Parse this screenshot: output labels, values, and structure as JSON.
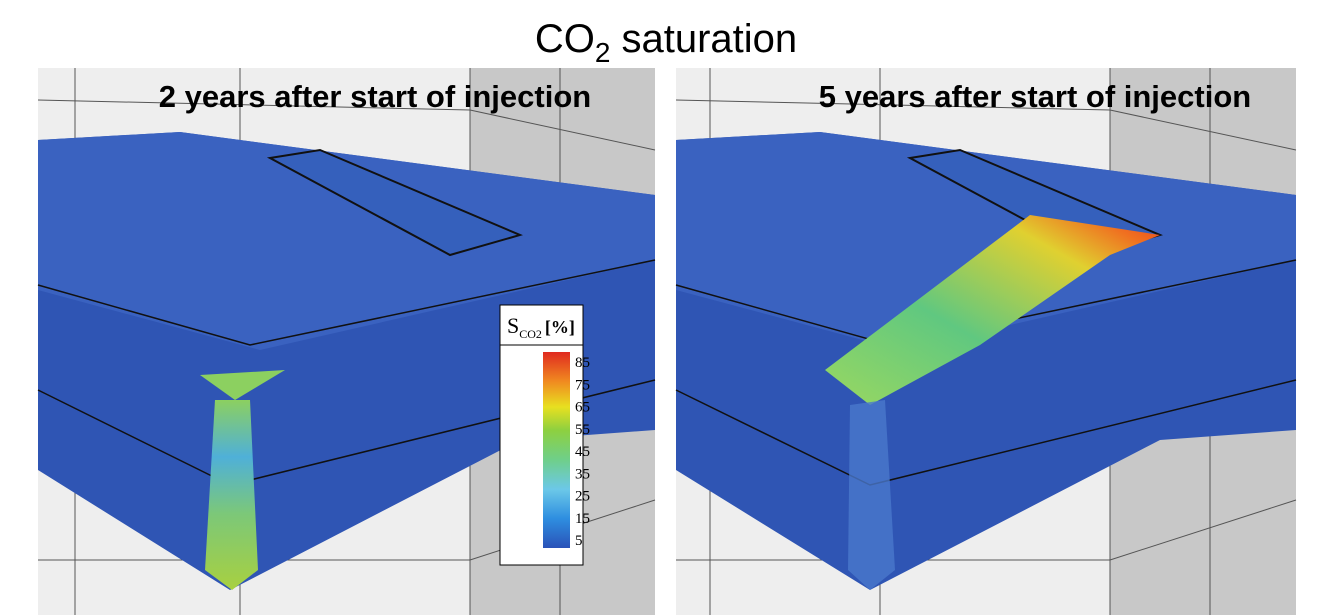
{
  "title": {
    "main": "CO",
    "sub": "2",
    "rest": " saturation"
  },
  "panels": [
    {
      "title": "2 years after start of injection"
    },
    {
      "title": "5 years after start of injection"
    }
  ],
  "legend": {
    "symbol": "S",
    "sub": "CO2",
    "unit": "[%]",
    "ticks": [
      85,
      75,
      65,
      55,
      45,
      35,
      25,
      15,
      5
    ]
  }
}
